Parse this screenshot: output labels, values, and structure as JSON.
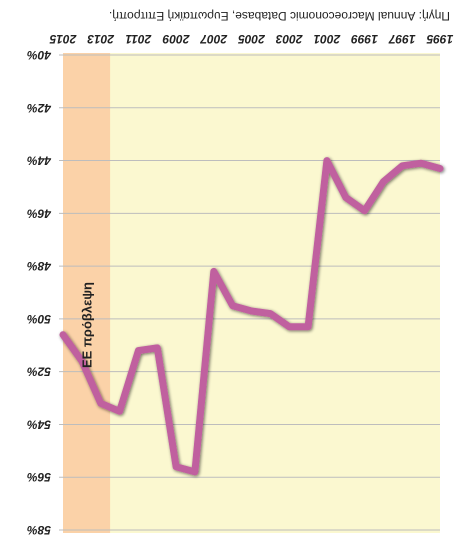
{
  "chart_data": {
    "type": "line",
    "title": "Πηγή: Annual Macroeconomic Database, Ευρωπαϊκή Επιτροπή.",
    "orientation": "rotated-180",
    "x": [
      1995,
      1996,
      1997,
      1998,
      1999,
      2000,
      2001,
      2002,
      2003,
      2004,
      2005,
      2006,
      2007,
      2008,
      2009,
      2010,
      2011,
      2012,
      2013,
      2014,
      2015
    ],
    "x_tick_labels": [
      "1995",
      "1997",
      "1999",
      "2001",
      "2003",
      "2005",
      "2007",
      "2009",
      "2011",
      "2013",
      "2015"
    ],
    "y_tick_labels": [
      "40%",
      "42%",
      "44%",
      "46%",
      "48%",
      "50%",
      "52%",
      "54%",
      "56%",
      "58%"
    ],
    "ylim": [
      40,
      58
    ],
    "y_inverted": true,
    "grid": true,
    "series": [
      {
        "values": [
          44.3,
          44.1,
          44.2,
          44.8,
          45.9,
          45.4,
          44.0,
          50.3,
          50.3,
          49.8,
          49.7,
          49.5,
          48.2,
          55.8,
          55.6,
          51.1,
          51.2,
          53.5,
          53.2,
          51.6,
          50.6
        ]
      }
    ],
    "shaded_region": {
      "from_year": 2012.5,
      "to_year": 2015,
      "label": "ΕΕ πρόβλεψη"
    },
    "colors": {
      "plot_background": "#fbf8d0",
      "projection_shade": "#fbd2a8",
      "line": "#c0609f",
      "line_shadow": "#555555",
      "grid": "#bdbdbd"
    }
  }
}
